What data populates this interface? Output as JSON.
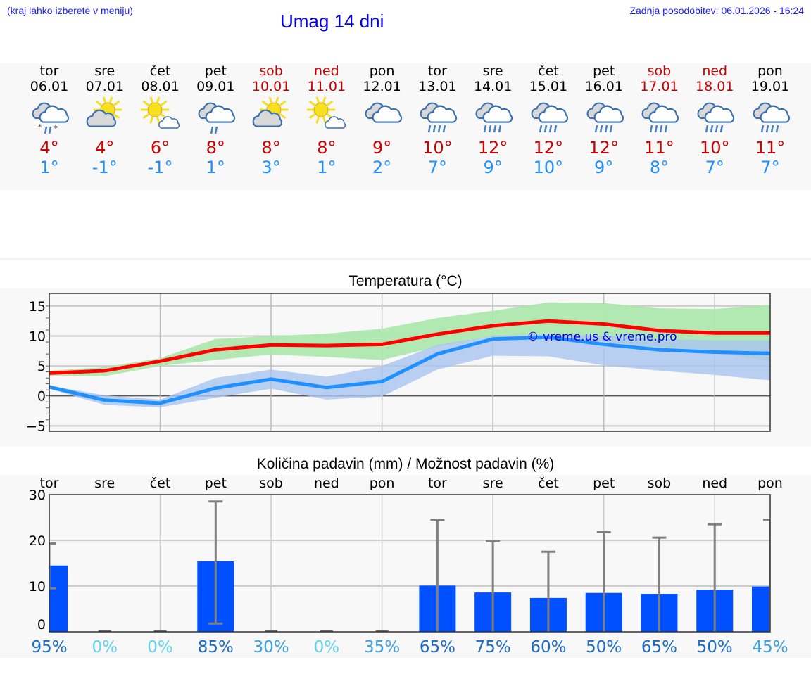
{
  "header": {
    "hint": "(kraj lahko izberete v meniju)",
    "title": "Umag 14 dni",
    "updated": "Zadnja posodobitev: 06.01.2026 - 16:24"
  },
  "days": [
    {
      "name": "tor",
      "date": "06.01",
      "weekend": false,
      "icon": "cloud-rain-snow",
      "max": "4°",
      "min": "1°"
    },
    {
      "name": "sre",
      "date": "07.01",
      "weekend": false,
      "icon": "sun-behind-cloud",
      "max": "4°",
      "min": "-1°"
    },
    {
      "name": "čet",
      "date": "08.01",
      "weekend": false,
      "icon": "sun-small-cloud",
      "max": "6°",
      "min": "-1°"
    },
    {
      "name": "pet",
      "date": "09.01",
      "weekend": false,
      "icon": "cloud-light-rain",
      "max": "8°",
      "min": "1°"
    },
    {
      "name": "sob",
      "date": "10.01",
      "weekend": true,
      "icon": "sun-behind-cloud",
      "max": "8°",
      "min": "3°"
    },
    {
      "name": "ned",
      "date": "11.01",
      "weekend": true,
      "icon": "sun-small-cloud",
      "max": "8°",
      "min": "1°"
    },
    {
      "name": "pon",
      "date": "12.01",
      "weekend": false,
      "icon": "cloud",
      "max": "9°",
      "min": "2°"
    },
    {
      "name": "tor",
      "date": "13.01",
      "weekend": false,
      "icon": "cloud-rain",
      "max": "10°",
      "min": "7°"
    },
    {
      "name": "sre",
      "date": "14.01",
      "weekend": false,
      "icon": "cloud-rain",
      "max": "12°",
      "min": "9°"
    },
    {
      "name": "čet",
      "date": "15.01",
      "weekend": false,
      "icon": "cloud-rain",
      "max": "12°",
      "min": "10°"
    },
    {
      "name": "pet",
      "date": "16.01",
      "weekend": false,
      "icon": "cloud-rain",
      "max": "12°",
      "min": "9°"
    },
    {
      "name": "sob",
      "date": "17.01",
      "weekend": true,
      "icon": "cloud-rain",
      "max": "11°",
      "min": "8°"
    },
    {
      "name": "ned",
      "date": "18.01",
      "weekend": true,
      "icon": "cloud-rain",
      "max": "10°",
      "min": "7°"
    },
    {
      "name": "pon",
      "date": "19.01",
      "weekend": false,
      "icon": "cloud-rain",
      "max": "11°",
      "min": "7°"
    }
  ],
  "colors": {
    "max": "#ff0000",
    "min": "#1e90ff",
    "max_band": "#aee8ae",
    "min_band": "#a9c4f0",
    "bar": "#0050ff",
    "err": "#808080",
    "pct_high": "#1a6cc4",
    "pct_mid": "#3aa0e0",
    "pct_zero": "#5fd3ee"
  },
  "chart_data": [
    {
      "type": "line",
      "title": "Temperatura (°C)",
      "watermark": "© vreme.us & vreme.pro",
      "ylim": [
        -5.9,
        17.1
      ],
      "yticks": [
        "15",
        "10",
        "5",
        "0",
        "−5"
      ],
      "ytick_values": [
        15,
        10,
        5,
        0,
        -5
      ],
      "grid": true,
      "series": [
        {
          "name": "max",
          "values": [
            3.8,
            4.2,
            5.8,
            7.7,
            8.5,
            8.4,
            8.6,
            10.3,
            11.7,
            12.5,
            12.0,
            10.9,
            10.5,
            10.5
          ],
          "band_low": [
            3.4,
            3.3,
            5.0,
            6.0,
            6.9,
            6.5,
            6.0,
            8.2,
            10.0,
            10.3,
            9.1,
            8.0,
            7.3,
            5.8
          ],
          "band_high": [
            4.2,
            4.8,
            6.3,
            9.5,
            10.0,
            10.4,
            11.2,
            13.0,
            14.2,
            15.6,
            15.5,
            14.6,
            14.5,
            15.2
          ]
        },
        {
          "name": "min",
          "values": [
            1.5,
            -0.7,
            -1.2,
            1.3,
            2.8,
            1.4,
            2.4,
            7.0,
            9.5,
            9.8,
            8.6,
            7.7,
            7.3,
            7.1
          ],
          "band_low": [
            1.2,
            -1.5,
            -1.9,
            -0.3,
            1.2,
            -0.6,
            -0.1,
            4.4,
            6.7,
            6.6,
            5.1,
            4.2,
            3.5,
            2.6
          ],
          "band_high": [
            1.7,
            0.1,
            -0.6,
            3.0,
            4.4,
            3.2,
            5.0,
            8.5,
            10.0,
            10.3,
            10.0,
            9.5,
            9.3,
            9.3
          ]
        }
      ]
    },
    {
      "type": "bar",
      "title": "Količina padavin (mm) / Možnost padavin (%)",
      "categories": [
        "tor",
        "sre",
        "čet",
        "pet",
        "sob",
        "ned",
        "pon",
        "tor",
        "sre",
        "čet",
        "pet",
        "sob",
        "ned",
        "pon"
      ],
      "ylim": [
        0,
        30
      ],
      "yticks": [
        "30",
        "20",
        "10",
        "0"
      ],
      "ytick_values": [
        30,
        20,
        10,
        0
      ],
      "values": [
        14.5,
        0,
        0,
        15.4,
        0,
        0,
        0,
        10.1,
        8.6,
        7.4,
        8.5,
        8.3,
        9.2,
        9.9
      ],
      "err_low": [
        9.5,
        0,
        0,
        1.8,
        0,
        0,
        0,
        0,
        0,
        0,
        0,
        0,
        0,
        0
      ],
      "err_high": [
        19.3,
        0,
        0,
        28.5,
        0,
        0,
        0,
        24.5,
        19.8,
        17.5,
        21.8,
        20.6,
        23.5,
        24.5
      ],
      "probability": [
        "95%",
        "0%",
        "0%",
        "85%",
        "30%",
        "0%",
        "35%",
        "65%",
        "75%",
        "60%",
        "50%",
        "65%",
        "50%",
        "45%"
      ],
      "probability_values": [
        95,
        0,
        0,
        85,
        30,
        0,
        35,
        65,
        75,
        60,
        50,
        65,
        50,
        45
      ]
    }
  ]
}
